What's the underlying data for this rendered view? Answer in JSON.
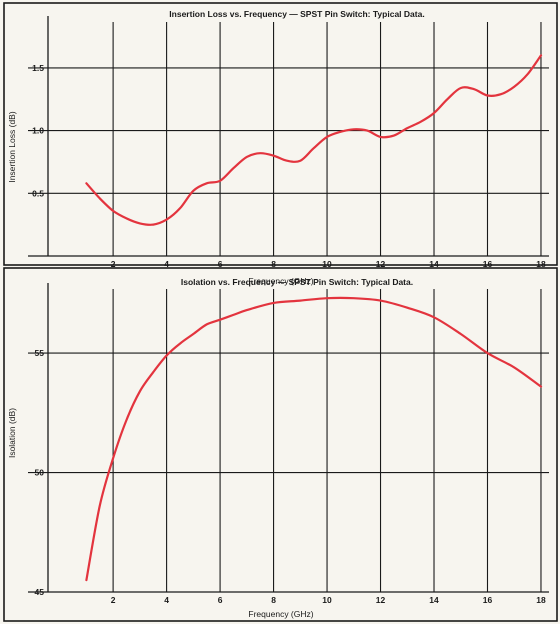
{
  "chart_data": [
    {
      "type": "line",
      "title": "Insertion Loss vs. Frequency — SPST Pin Switch: Typical Data.",
      "xlabel": "Frequency (GHz)",
      "ylabel": "Insertion Loss (dB)",
      "xlim": [
        0.5,
        18.3
      ],
      "ylim": [
        0,
        1.85
      ],
      "x_ticks": [
        2,
        4,
        6,
        8,
        10,
        12,
        14,
        16,
        18
      ],
      "y_ticks": [
        0.5,
        1.0,
        1.5
      ],
      "y_tick_labels": [
        "0.5",
        "1.0",
        "1.5"
      ],
      "grid": true,
      "series": [
        {
          "color": "#e3343e",
          "x": [
            1.0,
            1.5,
            2.0,
            2.5,
            3.0,
            3.5,
            4.0,
            4.5,
            5.0,
            5.5,
            6.0,
            6.5,
            7.0,
            7.5,
            8.0,
            8.5,
            9.0,
            9.5,
            10.0,
            10.5,
            11.0,
            11.5,
            12.0,
            12.5,
            13.0,
            13.5,
            14.0,
            14.5,
            15.0,
            15.5,
            16.0,
            16.5,
            17.0,
            17.5,
            18.0
          ],
          "y": [
            0.58,
            0.46,
            0.36,
            0.3,
            0.26,
            0.25,
            0.29,
            0.38,
            0.52,
            0.58,
            0.6,
            0.7,
            0.79,
            0.82,
            0.8,
            0.76,
            0.76,
            0.86,
            0.95,
            0.99,
            1.01,
            1.0,
            0.95,
            0.96,
            1.02,
            1.07,
            1.14,
            1.25,
            1.34,
            1.33,
            1.28,
            1.29,
            1.35,
            1.45,
            1.6
          ]
        }
      ]
    },
    {
      "type": "line",
      "title": "Isolation vs. Frequency — SPST Pin Switch: Typical Data.",
      "xlabel": "Frequency (GHz)",
      "ylabel": "Isolation (dB)",
      "xlim": [
        0.5,
        18.3
      ],
      "ylim": [
        45,
        57.6
      ],
      "x_ticks": [
        2,
        4,
        6,
        8,
        10,
        12,
        14,
        16,
        18
      ],
      "y_ticks": [
        45,
        50,
        55
      ],
      "y_tick_labels": [
        "45",
        "50",
        "55"
      ],
      "grid": true,
      "series": [
        {
          "color": "#e3343e",
          "x": [
            1.0,
            1.5,
            2.0,
            2.5,
            3.0,
            3.5,
            4.0,
            4.5,
            5.0,
            5.5,
            6.0,
            6.5,
            7.0,
            8.0,
            9.0,
            10.0,
            11.0,
            12.0,
            13.0,
            14.0,
            15.0,
            16.0,
            17.0,
            18.0
          ],
          "y": [
            45.5,
            48.6,
            50.6,
            52.2,
            53.4,
            54.2,
            54.9,
            55.4,
            55.8,
            56.2,
            56.4,
            56.6,
            56.8,
            57.1,
            57.2,
            57.3,
            57.3,
            57.2,
            56.9,
            56.5,
            55.8,
            55.0,
            54.4,
            53.6
          ]
        }
      ]
    }
  ]
}
